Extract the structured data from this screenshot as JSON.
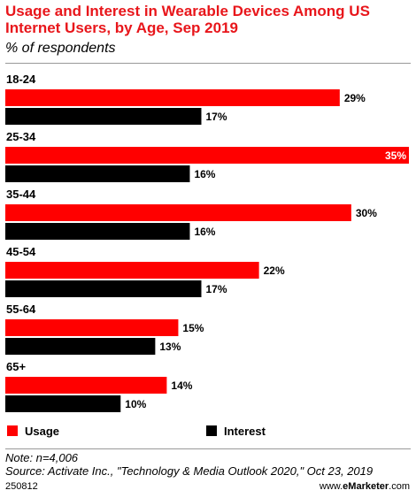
{
  "chart_data": {
    "type": "bar",
    "orientation": "horizontal",
    "title": "Usage and Interest in Wearable Devices Among US Internet Users, by Age, Sep 2019",
    "subtitle": "% of respondents",
    "categories": [
      "18-24",
      "25-34",
      "35-44",
      "45-54",
      "55-64",
      "65+"
    ],
    "series": [
      {
        "name": "Usage",
        "color": "#ff0000",
        "values": [
          29,
          35,
          30,
          22,
          15,
          14
        ],
        "labels": [
          "29%",
          "35%",
          "30%",
          "22%",
          "15%",
          "14%"
        ]
      },
      {
        "name": "Interest",
        "color": "#000000",
        "values": [
          17,
          16,
          16,
          17,
          13,
          10
        ],
        "labels": [
          "17%",
          "16%",
          "16%",
          "17%",
          "13%",
          "10%"
        ]
      }
    ],
    "xlim": [
      0,
      35
    ],
    "grid": false,
    "legend": "bottom"
  },
  "notes": {
    "sample": "Note: n=4,006",
    "source": "Source: Activate Inc., \"Technology & Media Outlook 2020,\" Oct 23, 2019"
  },
  "footer": {
    "id": "250812",
    "brand_prefix": "www.",
    "brand_name": "eMarketer",
    "brand_suffix": ".com"
  }
}
